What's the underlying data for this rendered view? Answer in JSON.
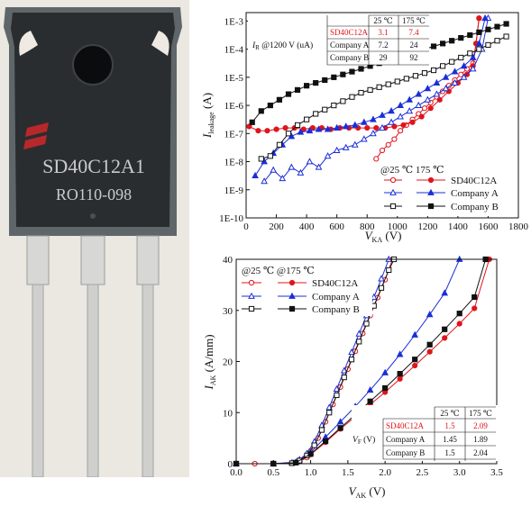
{
  "photo": {
    "part_number": "SD40C12A1",
    "lot_code": "RO110-098"
  },
  "colors": {
    "sd40": "#e0141b",
    "companyA": "#1a2fd8",
    "companyB": "#111111"
  },
  "chart_data": [
    {
      "type": "line",
      "xlabel_main": "V",
      "xlabel_sub": "KA",
      "xlabel_unit": " (V)",
      "ylabel_main": "I",
      "ylabel_sub": "leakage",
      "ylabel_unit": " (A)",
      "xlim": [
        0,
        1800
      ],
      "ylim_exp": [
        -10,
        -2.7
      ],
      "y_scale": "log",
      "x_ticks": [
        "0",
        "200",
        "400",
        "600",
        "800",
        "1000",
        "1200",
        "1400",
        "1600",
        "1800"
      ],
      "y_ticks": [
        "1E-10",
        "1E-9",
        "1E-8",
        "1E-7",
        "1E-6",
        "1E-5",
        "1E-4",
        "1E-3"
      ],
      "legend": {
        "header": "@25  ℃  175  ℃",
        "entries": [
          "SD40C12A",
          "Company A",
          "Company B"
        ]
      },
      "table": {
        "label": "I",
        "label_sub": "R",
        "label_rest": " @1200 V (uA)",
        "header": [
          "25  ℃",
          "175  ℃"
        ],
        "rows": [
          {
            "name": "SD40C12A",
            "v25": "3.1",
            "v175": "7.4"
          },
          {
            "name": "Company A",
            "v25": "7.2",
            "v175": "24"
          },
          {
            "name": "Company B",
            "v25": "29",
            "v175": "92"
          }
        ]
      },
      "series": [
        {
          "name": "SD40C12A",
          "temp": "25",
          "x": [
            860,
            900,
            940,
            980,
            1020,
            1060,
            1100,
            1140,
            1180,
            1220,
            1260,
            1300,
            1340,
            1380,
            1420,
            1460,
            1500,
            1520,
            1540
          ],
          "y_exp": [
            -7.9,
            -7.6,
            -7.4,
            -7.2,
            -6.9,
            -6.7,
            -6.5,
            -6.3,
            -6.1,
            -5.9,
            -5.7,
            -5.5,
            -5.3,
            -5.1,
            -4.9,
            -4.7,
            -4.5,
            -3.8,
            -2.9
          ]
        },
        {
          "name": "SD40C12A",
          "temp": "175",
          "x": [
            20,
            80,
            140,
            200,
            260,
            320,
            380,
            440,
            500,
            560,
            620,
            680,
            740,
            800,
            860,
            920,
            980,
            1040,
            1100,
            1160,
            1220,
            1280,
            1340,
            1400,
            1460,
            1500,
            1520,
            1540
          ],
          "y_exp": [
            -6.75,
            -6.9,
            -6.9,
            -6.85,
            -6.8,
            -6.8,
            -6.85,
            -6.8,
            -6.8,
            -6.85,
            -6.8,
            -6.8,
            -6.8,
            -6.8,
            -6.8,
            -6.8,
            -6.75,
            -6.7,
            -6.6,
            -6.4,
            -6.1,
            -5.8,
            -5.5,
            -5.2,
            -4.9,
            -4.6,
            -3.8,
            -2.9
          ]
        },
        {
          "name": "Company A",
          "temp": "25",
          "x": [
            120,
            180,
            240,
            300,
            360,
            420,
            480,
            540,
            600,
            660,
            720,
            780,
            840,
            900,
            960,
            1020,
            1080,
            1140,
            1200,
            1260,
            1320,
            1380,
            1440,
            1500,
            1560,
            1600
          ],
          "y_exp": [
            -8.7,
            -8.3,
            -8.6,
            -8.2,
            -8.4,
            -8.0,
            -8.2,
            -7.8,
            -7.6,
            -7.5,
            -7.4,
            -7.2,
            -7.0,
            -6.8,
            -6.6,
            -6.4,
            -6.2,
            -6.0,
            -5.8,
            -5.6,
            -5.4,
            -5.2,
            -5.0,
            -4.7,
            -4.0,
            -2.9
          ]
        },
        {
          "name": "Company A",
          "temp": "175",
          "x": [
            60,
            120,
            180,
            240,
            300,
            360,
            420,
            480,
            540,
            600,
            660,
            720,
            780,
            840,
            900,
            960,
            1020,
            1080,
            1140,
            1200,
            1260,
            1320,
            1380,
            1440,
            1500,
            1540,
            1580
          ],
          "y_exp": [
            -8.5,
            -8.0,
            -7.7,
            -7.4,
            -7.1,
            -6.95,
            -6.9,
            -6.85,
            -6.85,
            -6.8,
            -6.75,
            -6.7,
            -6.6,
            -6.5,
            -6.35,
            -6.2,
            -6.0,
            -5.8,
            -5.6,
            -5.4,
            -5.2,
            -5.0,
            -4.8,
            -4.6,
            -4.3,
            -3.8,
            -2.9
          ]
        },
        {
          "name": "Company B",
          "temp": "25",
          "x": [
            100,
            160,
            220,
            280,
            340,
            400,
            460,
            520,
            580,
            640,
            700,
            760,
            820,
            880,
            940,
            1000,
            1060,
            1120,
            1180,
            1240,
            1300,
            1360,
            1420,
            1480,
            1540,
            1600,
            1660,
            1720
          ],
          "y_exp": [
            -7.9,
            -7.8,
            -7.4,
            -7.0,
            -6.7,
            -6.5,
            -6.3,
            -6.15,
            -6.0,
            -5.85,
            -5.7,
            -5.55,
            -5.45,
            -5.35,
            -5.25,
            -5.15,
            -5.05,
            -4.95,
            -4.85,
            -4.75,
            -4.6,
            -4.45,
            -4.3,
            -4.15,
            -4.0,
            -3.85,
            -3.7,
            -3.55
          ]
        },
        {
          "name": "Company B",
          "temp": "175",
          "x": [
            40,
            100,
            160,
            220,
            280,
            340,
            400,
            460,
            520,
            580,
            640,
            700,
            760,
            820,
            880,
            940,
            1000,
            1060,
            1120,
            1180,
            1240,
            1300,
            1360,
            1420,
            1480,
            1540,
            1600,
            1660,
            1720
          ],
          "y_exp": [
            -6.6,
            -6.2,
            -6.0,
            -5.8,
            -5.6,
            -5.45,
            -5.3,
            -5.2,
            -5.1,
            -5.0,
            -4.9,
            -4.8,
            -4.7,
            -4.6,
            -4.5,
            -4.4,
            -4.3,
            -4.2,
            -4.1,
            -4.0,
            -3.9,
            -3.8,
            -3.7,
            -3.6,
            -3.5,
            -3.4,
            -3.3,
            -3.2,
            -3.1
          ]
        }
      ]
    },
    {
      "type": "line",
      "xlabel_main": "V",
      "xlabel_sub": "AK",
      "xlabel_unit": " (V)",
      "ylabel_main": "I",
      "ylabel_sub": "AK",
      "ylabel_unit": " (A/mm)",
      "xlim": [
        0,
        3.5
      ],
      "ylim": [
        0,
        40
      ],
      "x_ticks": [
        "0.0",
        "0.5",
        "1.0",
        "1.5",
        "2.0",
        "2.5",
        "3.0",
        "3.5"
      ],
      "y_ticks": [
        "0",
        "10",
        "20",
        "30",
        "40"
      ],
      "legend": {
        "header": "@25  ℃  @175  ℃",
        "entries": [
          "SD40C12A",
          "Company A",
          "Company B"
        ]
      },
      "table": {
        "label": "V",
        "label_sub": "F",
        "label_rest": " (V)",
        "header": [
          "25  ℃",
          "175  ℃"
        ],
        "rows": [
          {
            "name": "SD40C12A",
            "v25": "1.5",
            "v175": "2.09"
          },
          {
            "name": "Company A",
            "v25": "1.45",
            "v175": "1.89"
          },
          {
            "name": "Company B",
            "v25": "1.5",
            "v175": "2.04"
          }
        ]
      },
      "series": [
        {
          "name": "SD40C12A",
          "temp": "25",
          "x": [
            0.0,
            0.25,
            0.5,
            0.75,
            0.85,
            0.95,
            1.0,
            1.1,
            1.2,
            1.3,
            1.4,
            1.5,
            1.6,
            1.7,
            1.8,
            1.9,
            2.0,
            2.1
          ],
          "y": [
            0,
            0,
            0,
            0.1,
            0.4,
            1.2,
            2.5,
            5.0,
            8.2,
            11.6,
            15.0,
            18.5,
            22.0,
            25.5,
            29.0,
            32.5,
            36.0,
            40.0
          ]
        },
        {
          "name": "SD40C12A",
          "temp": "175",
          "x": [
            0.0,
            0.5,
            0.8,
            1.0,
            1.2,
            1.4,
            1.6,
            1.8,
            2.0,
            2.2,
            2.4,
            2.6,
            2.8,
            3.0,
            3.2,
            3.4
          ],
          "y": [
            0,
            0,
            0.2,
            1.8,
            4.2,
            6.8,
            9.2,
            11.6,
            14.0,
            16.6,
            19.2,
            21.9,
            24.6,
            27.4,
            30.4,
            40.0
          ]
        },
        {
          "name": "Company A",
          "temp": "25",
          "x": [
            0.0,
            0.5,
            0.75,
            0.85,
            0.95,
            1.05,
            1.15,
            1.25,
            1.35,
            1.45,
            1.55,
            1.65,
            1.75,
            1.85,
            1.95,
            2.05
          ],
          "y": [
            0,
            0,
            0.2,
            0.8,
            2.0,
            4.3,
            7.5,
            11.0,
            14.6,
            18.2,
            21.8,
            25.4,
            29.0,
            32.6,
            36.2,
            40.0
          ]
        },
        {
          "name": "Company A",
          "temp": "175",
          "x": [
            0.0,
            0.5,
            0.8,
            1.0,
            1.2,
            1.4,
            1.6,
            1.8,
            2.0,
            2.2,
            2.4,
            2.6,
            2.8,
            3.0
          ],
          "y": [
            0,
            0,
            0.3,
            2.2,
            5.2,
            8.2,
            11.2,
            14.4,
            17.8,
            21.4,
            25.2,
            29.2,
            33.4,
            40.0
          ]
        },
        {
          "name": "Company B",
          "temp": "25",
          "x": [
            0.0,
            0.5,
            0.75,
            0.85,
            0.95,
            1.05,
            1.15,
            1.25,
            1.35,
            1.45,
            1.55,
            1.65,
            1.75,
            1.85,
            1.95,
            2.05,
            2.12
          ],
          "y": [
            0,
            0,
            0.1,
            0.6,
            1.6,
            3.6,
            6.6,
            10.0,
            13.4,
            16.9,
            20.4,
            23.9,
            27.4,
            30.9,
            34.4,
            37.9,
            40.0
          ]
        },
        {
          "name": "Company B",
          "temp": "175",
          "x": [
            0.0,
            0.5,
            0.8,
            1.0,
            1.2,
            1.4,
            1.6,
            1.8,
            2.0,
            2.2,
            2.4,
            2.6,
            2.8,
            3.0,
            3.2,
            3.35
          ],
          "y": [
            0,
            0,
            0.2,
            1.9,
            4.4,
            7.0,
            9.6,
            12.2,
            14.8,
            17.6,
            20.4,
            23.3,
            26.3,
            29.4,
            32.6,
            40.0
          ]
        }
      ]
    }
  ]
}
